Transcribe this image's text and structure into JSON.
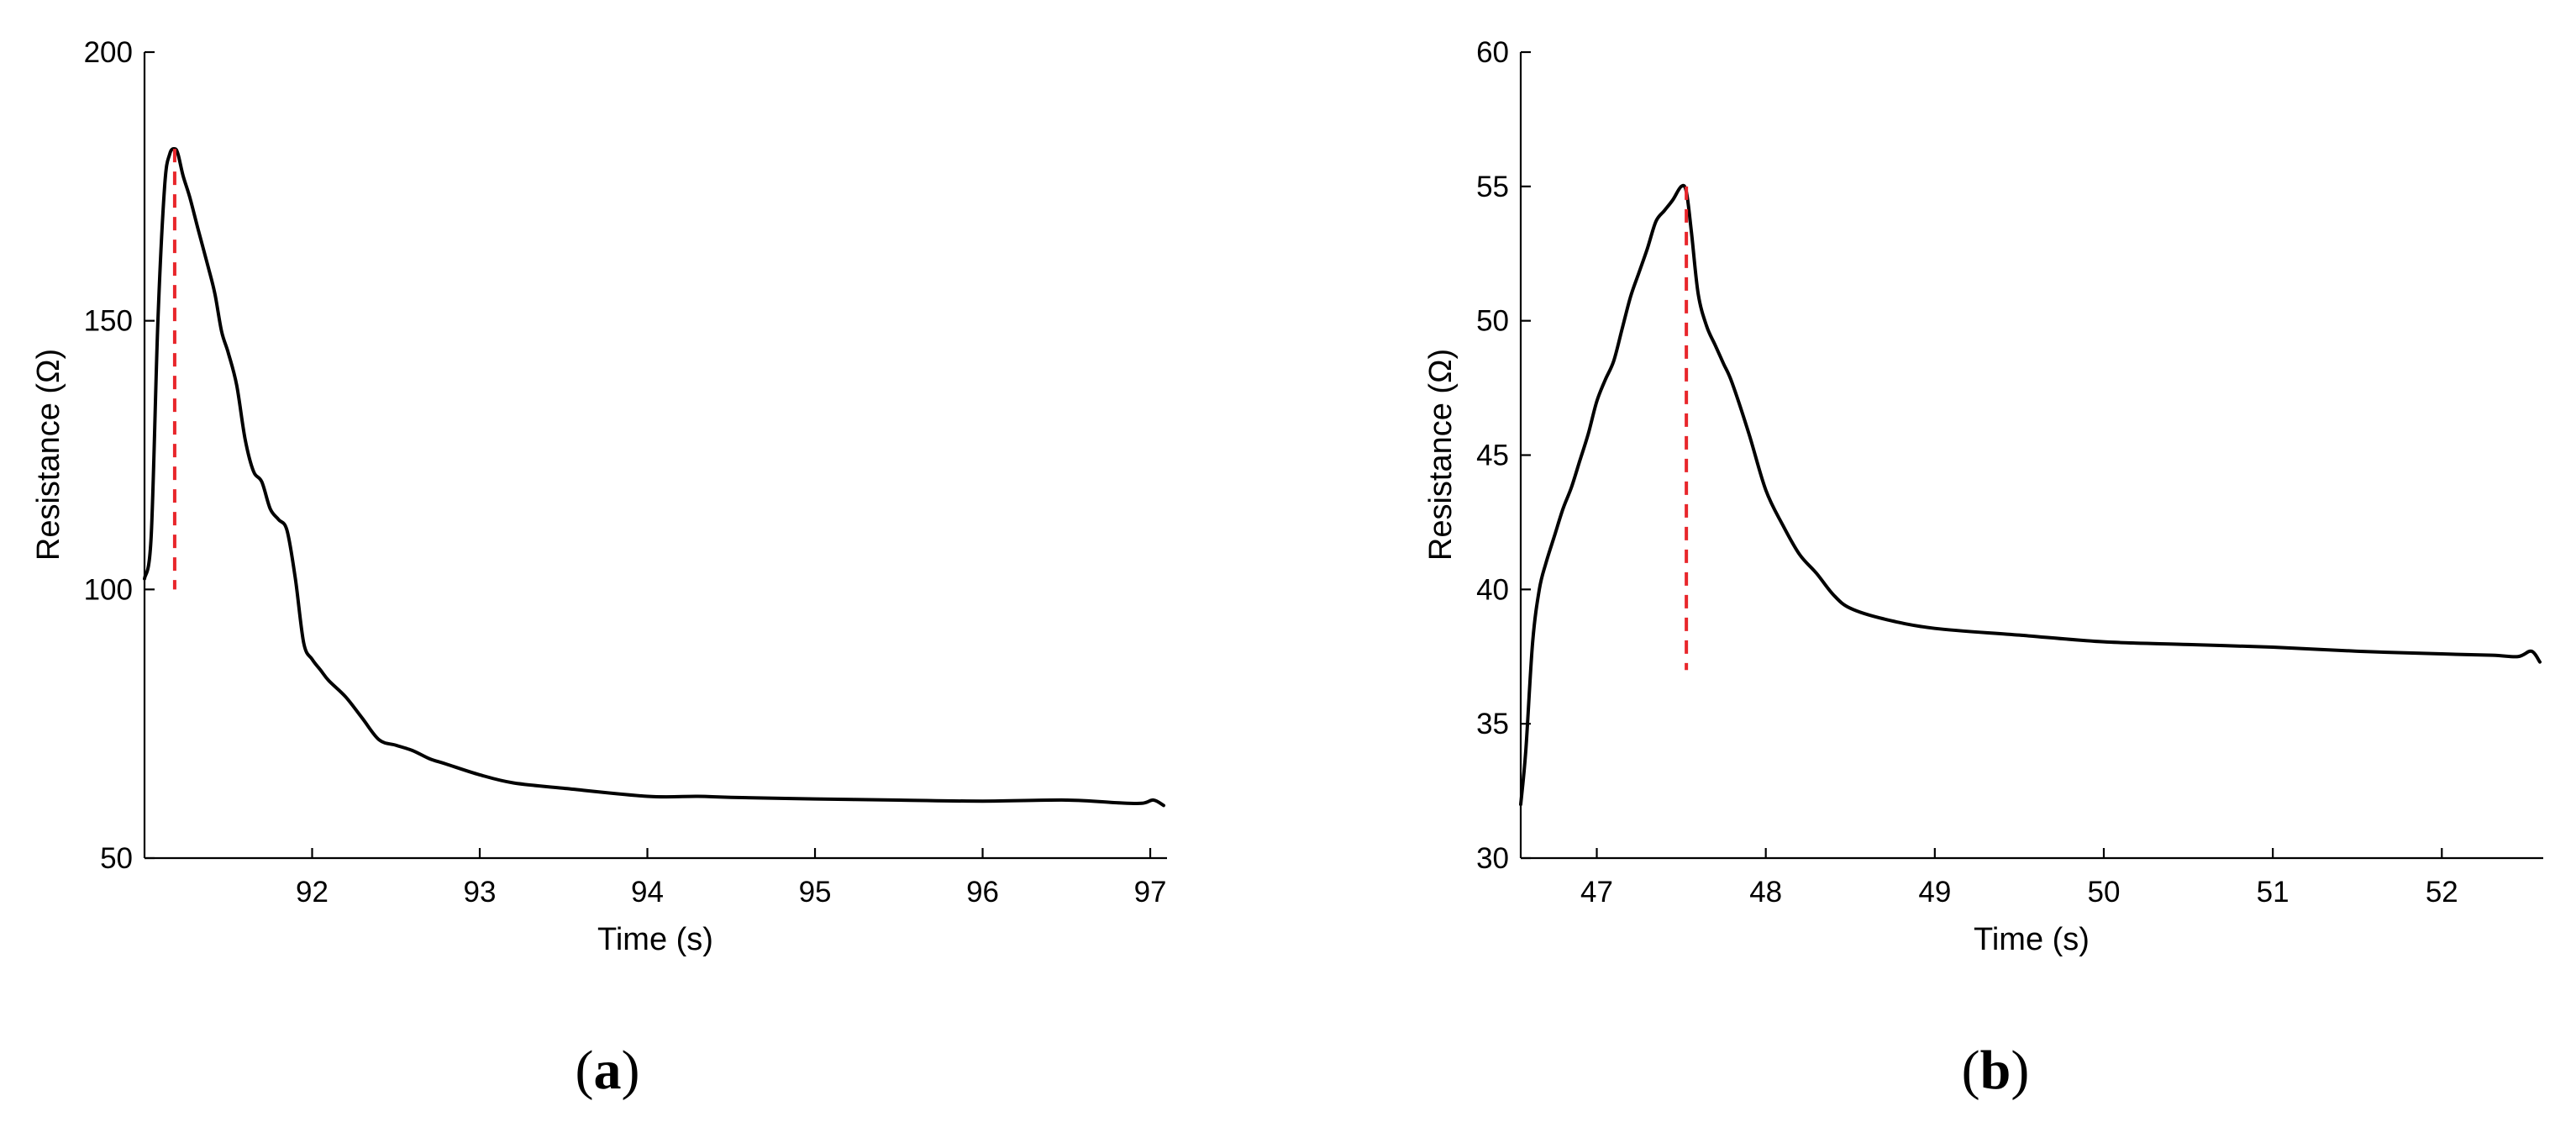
{
  "chart_data": [
    {
      "panel": "a",
      "type": "line",
      "title": "",
      "xlabel": "Time (s)",
      "ylabel": "Resistance (Ω)",
      "xlim": [
        91.0,
        97.1
      ],
      "ylim": [
        50,
        200
      ],
      "xticks": [
        92,
        93,
        94,
        95,
        96,
        97
      ],
      "yticks": [
        50,
        100,
        150,
        200
      ],
      "grid": false,
      "colors": {
        "series": "#000000",
        "marker": "#e8262b"
      },
      "series": [
        {
          "x": [
            91.0,
            91.04,
            91.08,
            91.12,
            91.15,
            91.18,
            91.2,
            91.23,
            91.27,
            91.32,
            91.38,
            91.42,
            91.46,
            91.5,
            91.55,
            91.6,
            91.65,
            91.7,
            91.75,
            91.8,
            91.85,
            91.9,
            91.95,
            92.0,
            92.05,
            92.1,
            92.2,
            92.3,
            92.4,
            92.5,
            92.6,
            92.7,
            92.8,
            93.0,
            93.2,
            93.5,
            94.0,
            94.3,
            94.5,
            95.0,
            95.5,
            96.0,
            96.5,
            96.8,
            96.95,
            97.02,
            97.08
          ],
          "y": [
            102,
            110,
            150,
            175,
            181,
            182,
            181,
            177,
            173,
            167,
            160,
            155,
            148,
            144,
            138,
            128,
            122,
            120,
            115,
            113,
            111,
            102,
            90,
            87,
            85,
            83,
            80,
            76,
            72,
            71,
            70,
            68.5,
            67.5,
            65.5,
            64,
            63,
            61.5,
            61.5,
            61.3,
            61,
            60.8,
            60.6,
            60.8,
            60.3,
            60.2,
            60.8,
            59.8
          ]
        }
      ],
      "marker": {
        "x": 91.18,
        "y_range": [
          100,
          182
        ]
      }
    },
    {
      "panel": "b",
      "type": "line",
      "title": "",
      "xlabel": "Time (s)",
      "ylabel": "Resistance (Ω)",
      "xlim": [
        46.55,
        52.6
      ],
      "ylim": [
        30,
        60
      ],
      "xticks": [
        47,
        48,
        49,
        50,
        51,
        52
      ],
      "yticks": [
        30,
        35,
        40,
        45,
        50,
        55,
        60
      ],
      "grid": false,
      "colors": {
        "series": "#000000",
        "marker": "#e8262b"
      },
      "series": [
        {
          "x": [
            46.55,
            46.58,
            46.62,
            46.66,
            46.7,
            46.75,
            46.8,
            46.85,
            46.9,
            46.95,
            47.0,
            47.05,
            47.1,
            47.15,
            47.2,
            47.25,
            47.3,
            47.35,
            47.4,
            47.45,
            47.5,
            47.53,
            47.56,
            47.6,
            47.65,
            47.7,
            47.75,
            47.8,
            47.9,
            48.0,
            48.1,
            48.2,
            48.3,
            48.4,
            48.5,
            48.7,
            49.0,
            49.5,
            50.0,
            50.5,
            51.0,
            51.5,
            52.0,
            52.3,
            52.45,
            52.53,
            52.58
          ],
          "y": [
            32,
            34,
            38,
            40,
            41,
            42,
            43,
            43.8,
            44.8,
            45.8,
            47,
            47.8,
            48.5,
            49.7,
            50.9,
            51.8,
            52.7,
            53.7,
            54.1,
            54.5,
            55,
            54.8,
            53.3,
            51,
            49.8,
            49.1,
            48.4,
            47.7,
            45.8,
            43.7,
            42.4,
            41.3,
            40.6,
            39.8,
            39.3,
            38.9,
            38.55,
            38.3,
            38.05,
            37.95,
            37.85,
            37.7,
            37.6,
            37.55,
            37.5,
            37.7,
            37.3
          ]
        }
      ],
      "marker": {
        "x": 47.53,
        "y_range": [
          37,
          55
        ]
      }
    }
  ],
  "labels": {
    "panel_a": "a",
    "panel_b": "b",
    "open_paren": "(",
    "close_paren": ")"
  }
}
